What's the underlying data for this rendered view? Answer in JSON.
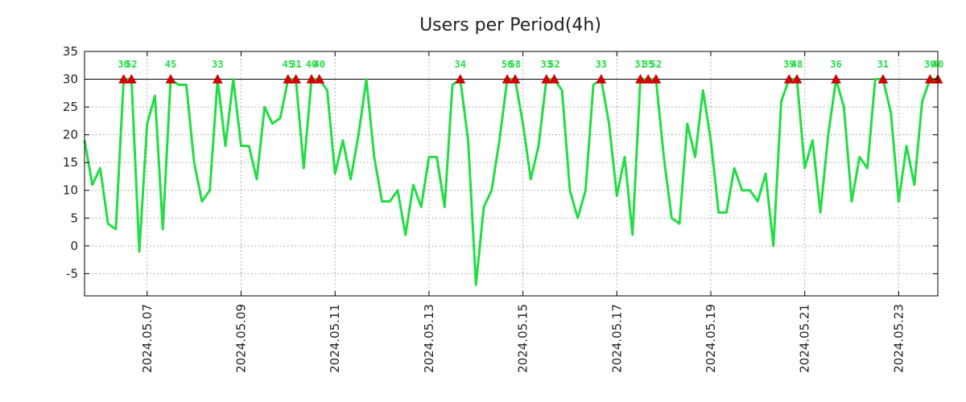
{
  "chart_data": {
    "type": "line",
    "title": "Users per Period(4h)",
    "xlabel": "",
    "ylabel": "",
    "ylim": [
      -9,
      35
    ],
    "yticks": [
      35,
      30,
      25,
      20,
      15,
      10,
      5,
      0,
      -5
    ],
    "xticks": [
      "2024.05.07",
      "2024.05.09",
      "2024.05.11",
      "2024.05.13",
      "2024.05.15",
      "2024.05.17",
      "2024.05.19",
      "2024.05.21",
      "2024.05.23"
    ],
    "first_tick_index": 8,
    "ticks_every_points": 12,
    "threshold": 30,
    "grid": true,
    "series": [
      {
        "name": "Users",
        "color": "#22dd44",
        "values": [
          19,
          11,
          14,
          4,
          3,
          30,
          30,
          -1,
          22,
          27,
          3,
          30,
          29,
          29,
          15,
          8,
          10,
          30,
          18,
          30,
          18,
          18,
          12,
          25,
          22,
          23,
          30,
          30,
          14,
          30,
          30,
          28,
          13,
          19,
          12,
          20,
          30,
          16,
          8,
          8,
          10,
          2,
          11,
          7,
          16,
          16,
          7,
          29,
          30,
          19,
          -7,
          7,
          10,
          19,
          30,
          30,
          22,
          12,
          18,
          30,
          30,
          28,
          10,
          5,
          10,
          29,
          30,
          22,
          9,
          16,
          2,
          30,
          30,
          30,
          16,
          5,
          4,
          22,
          16,
          28,
          19,
          6,
          6,
          14,
          10,
          10,
          8,
          13,
          0,
          26,
          30,
          30,
          14,
          19,
          6,
          20,
          30,
          25,
          8,
          16,
          14,
          30,
          30,
          24,
          8,
          18,
          11,
          26,
          30,
          30
        ]
      }
    ],
    "peaks": [
      {
        "index": 5,
        "label": "30"
      },
      {
        "index": 6,
        "label": "52"
      },
      {
        "index": 11,
        "label": "45"
      },
      {
        "index": 17,
        "label": "33"
      },
      {
        "index": 26,
        "label": "45"
      },
      {
        "index": 27,
        "label": "31"
      },
      {
        "index": 29,
        "label": "40"
      },
      {
        "index": 30,
        "label": "40"
      },
      {
        "index": 48,
        "label": "34"
      },
      {
        "index": 54,
        "label": "56"
      },
      {
        "index": 55,
        "label": "58"
      },
      {
        "index": 59,
        "label": "33"
      },
      {
        "index": 60,
        "label": "52"
      },
      {
        "index": 66,
        "label": "33"
      },
      {
        "index": 71,
        "label": "31"
      },
      {
        "index": 72,
        "label": "35"
      },
      {
        "index": 73,
        "label": "52"
      },
      {
        "index": 90,
        "label": "39"
      },
      {
        "index": 91,
        "label": "48"
      },
      {
        "index": 96,
        "label": "36"
      },
      {
        "index": 102,
        "label": "31"
      },
      {
        "index": 108,
        "label": "30"
      },
      {
        "index": 109,
        "label": "40"
      }
    ],
    "marker_color": "#dd0000"
  }
}
